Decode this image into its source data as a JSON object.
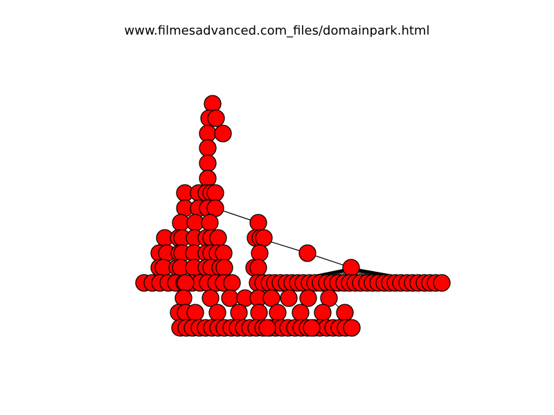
{
  "title": "www.filmesadvanced.com_files/domainpark.html",
  "graph": {
    "node_fill": "#ff0000",
    "node_stroke": "#000000",
    "edge_color": "#000000"
  }
}
